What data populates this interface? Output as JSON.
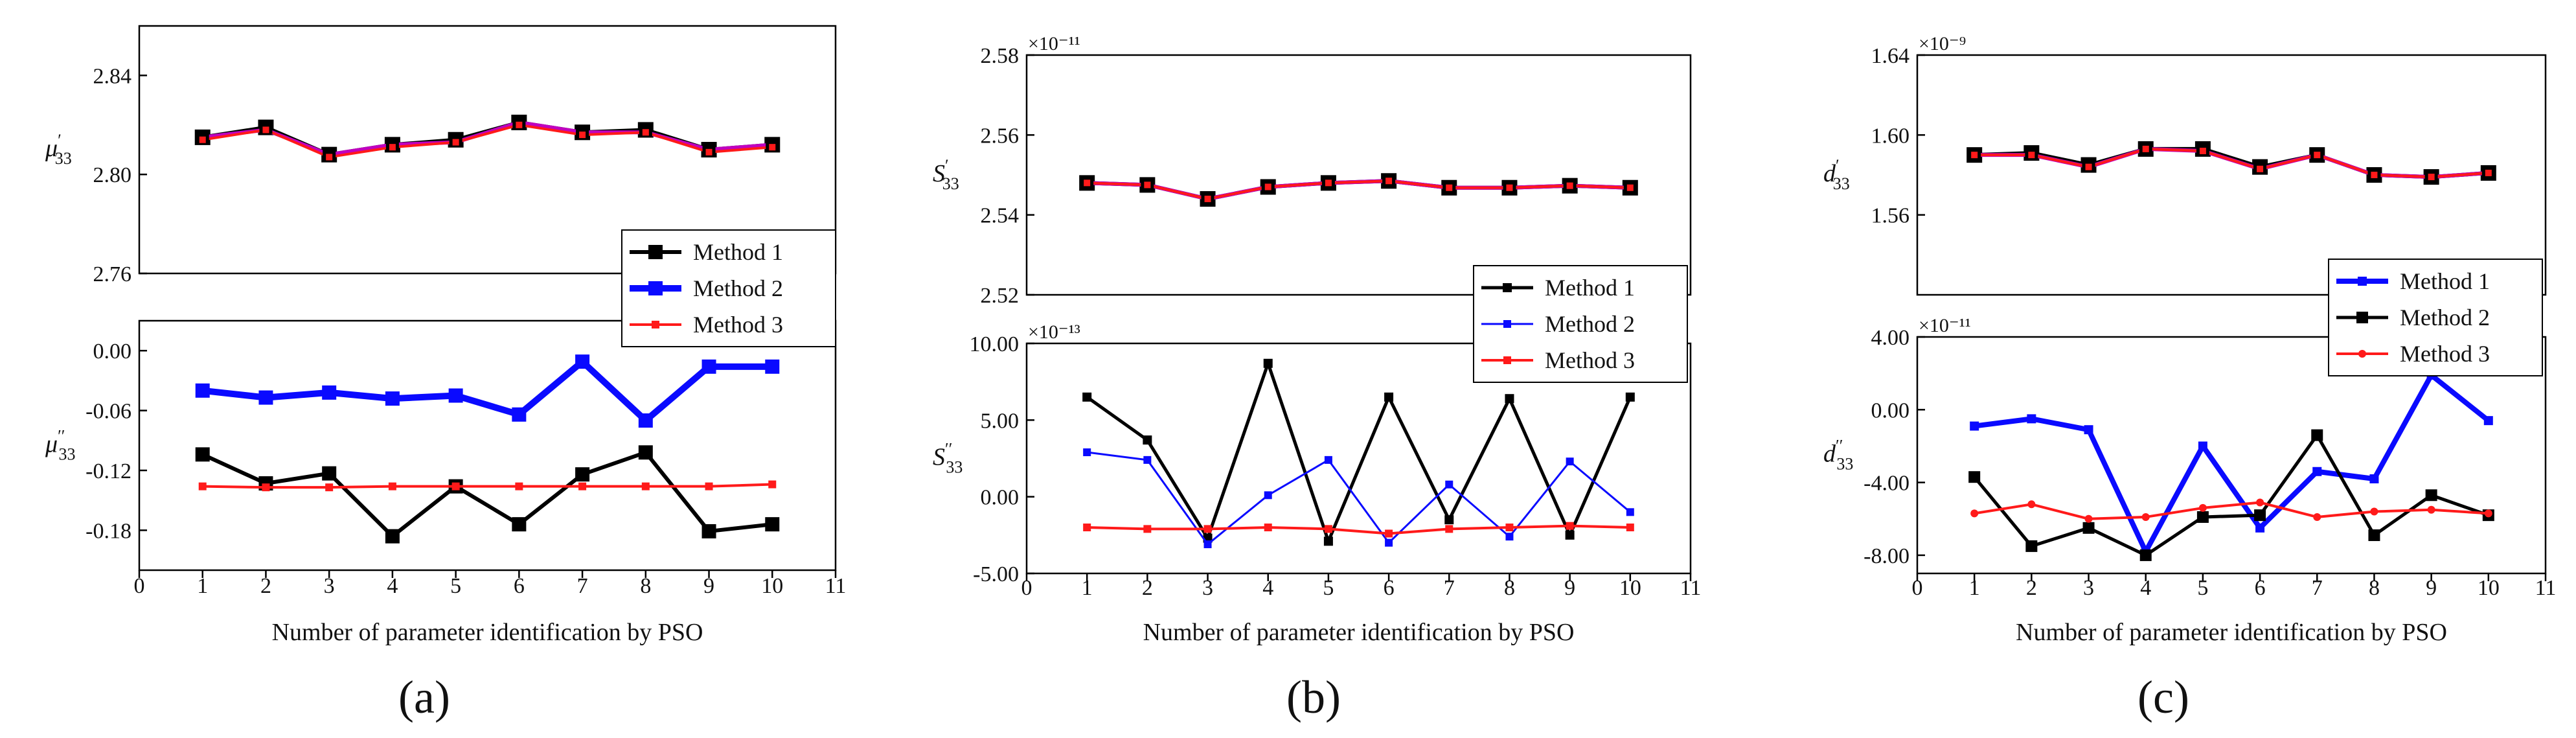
{
  "figure": {
    "x_axis_title": "Number of parameter identification by PSO",
    "x_ticks": [
      "0",
      "1",
      "2",
      "3",
      "4",
      "5",
      "6",
      "7",
      "8",
      "9",
      "10",
      "11"
    ],
    "colors": {
      "black": "#000000",
      "blue": "#0a0aff",
      "red": "#ff1a1a",
      "magenta": "#c000c0"
    }
  },
  "chart_data": [
    {
      "type": "line",
      "panel_label": "(a)",
      "xlabel": "Number of parameter identification by PSO",
      "xlim": [
        0,
        11
      ],
      "legend": [
        "Method 1",
        "Method 2",
        "Method 3"
      ],
      "legend_position": "top-right of lower subplot",
      "subplots": [
        {
          "ylabel": "μ'33",
          "ylim": [
            2.76,
            2.86
          ],
          "yticks": [
            "2.76",
            "2.80",
            "2.84"
          ],
          "exponent": "",
          "x": [
            1,
            2,
            3,
            4,
            5,
            6,
            7,
            8,
            9,
            10
          ],
          "series": [
            {
              "name": "Method 1",
              "values": [
                2.815,
                2.819,
                2.808,
                2.812,
                2.814,
                2.821,
                2.817,
                2.818,
                2.81,
                2.812
              ]
            },
            {
              "name": "Method 2",
              "values": [
                2.815,
                2.818,
                2.808,
                2.812,
                2.813,
                2.821,
                2.817,
                2.817,
                2.81,
                2.812
              ]
            },
            {
              "name": "Method 3",
              "values": [
                2.814,
                2.818,
                2.807,
                2.811,
                2.813,
                2.82,
                2.816,
                2.817,
                2.809,
                2.811
              ]
            }
          ]
        },
        {
          "ylabel": "μ''33",
          "ylim": [
            -0.22,
            0.03
          ],
          "yticks": [
            "-0.18",
            "-0.12",
            "-0.06",
            "0.00"
          ],
          "exponent": "",
          "x": [
            1,
            2,
            3,
            4,
            5,
            6,
            7,
            8,
            9,
            10
          ],
          "series": [
            {
              "name": "Method 1",
              "values": [
                -0.104,
                -0.133,
                -0.123,
                -0.186,
                -0.136,
                -0.174,
                -0.124,
                -0.102,
                -0.181,
                -0.174
              ]
            },
            {
              "name": "Method 2",
              "values": [
                -0.04,
                -0.047,
                -0.042,
                -0.048,
                -0.045,
                -0.064,
                -0.011,
                -0.07,
                -0.016,
                -0.016
              ]
            },
            {
              "name": "Method 3",
              "values": [
                -0.136,
                -0.137,
                -0.137,
                -0.136,
                -0.136,
                -0.136,
                -0.136,
                -0.136,
                -0.136,
                -0.134
              ]
            }
          ]
        }
      ]
    },
    {
      "type": "line",
      "panel_label": "(b)",
      "xlabel": "Number of parameter identification by PSO",
      "xlim": [
        0,
        11
      ],
      "legend": [
        "Method 1",
        "Method 2",
        "Method 3"
      ],
      "legend_position": "top-right of lower subplot",
      "subplots": [
        {
          "ylabel": "S'33",
          "ylim": [
            2.52,
            2.58
          ],
          "yticks": [
            "2.52",
            "2.54",
            "2.56",
            "2.58"
          ],
          "exponent": "×10⁻¹¹",
          "x": [
            1,
            2,
            3,
            4,
            5,
            6,
            7,
            8,
            9,
            10
          ],
          "series": [
            {
              "name": "Method 1",
              "values": [
                2.548,
                2.5475,
                2.544,
                2.547,
                2.548,
                2.5485,
                2.5468,
                2.5468,
                2.5473,
                2.5468
              ]
            },
            {
              "name": "Method 2",
              "values": [
                2.548,
                2.5475,
                2.544,
                2.547,
                2.548,
                2.5485,
                2.5468,
                2.5468,
                2.5473,
                2.5468
              ]
            },
            {
              "name": "Method 3",
              "values": [
                2.548,
                2.5475,
                2.544,
                2.547,
                2.548,
                2.5485,
                2.5468,
                2.5468,
                2.5473,
                2.5468
              ]
            }
          ]
        },
        {
          "ylabel": "S''33",
          "ylim": [
            -5.0,
            10.0
          ],
          "yticks": [
            "-5.00",
            "0.00",
            "5.00",
            "10.00"
          ],
          "exponent": "×10⁻¹³",
          "x": [
            1,
            2,
            3,
            4,
            5,
            6,
            7,
            8,
            9,
            10
          ],
          "series": [
            {
              "name": "Method 1",
              "values": [
                6.5,
                3.7,
                -2.7,
                8.7,
                -2.9,
                6.5,
                -1.5,
                6.4,
                -2.5,
                6.5
              ]
            },
            {
              "name": "Method 2",
              "values": [
                2.9,
                2.4,
                -3.1,
                0.1,
                2.4,
                -3.0,
                0.8,
                -2.6,
                2.3,
                -1.0
              ]
            },
            {
              "name": "Method 3",
              "values": [
                -2.0,
                -2.1,
                -2.1,
                -2.0,
                -2.1,
                -2.4,
                -2.1,
                -2.0,
                -1.9,
                -2.0
              ]
            }
          ]
        }
      ]
    },
    {
      "type": "line",
      "panel_label": "(c)",
      "xlabel": "Number of parameter identification by PSO",
      "xlim": [
        0,
        11
      ],
      "legend": [
        "Method 1",
        "Method 2",
        "Method 3"
      ],
      "legend_position": "top-right of lower subplot",
      "subplots": [
        {
          "ylabel": "d'33",
          "ylim": [
            1.52,
            1.64
          ],
          "yticks": [
            "1.56",
            "1.60",
            "1.64"
          ],
          "exponent": "×10⁻⁹",
          "x": [
            1,
            2,
            3,
            4,
            5,
            6,
            7,
            8,
            9,
            10
          ],
          "series": [
            {
              "name": "Method 1",
              "values": [
                1.59,
                1.591,
                1.585,
                1.593,
                1.593,
                1.584,
                1.59,
                1.58,
                1.579,
                1.581
              ]
            },
            {
              "name": "Method 2",
              "values": [
                1.59,
                1.59,
                1.584,
                1.593,
                1.592,
                1.583,
                1.59,
                1.58,
                1.579,
                1.581
              ]
            },
            {
              "name": "Method 3",
              "values": [
                1.59,
                1.59,
                1.584,
                1.593,
                1.592,
                1.583,
                1.59,
                1.58,
                1.579,
                1.581
              ]
            }
          ]
        },
        {
          "ylabel": "d''33",
          "ylim": [
            -9.0,
            4.0
          ],
          "yticks": [
            "-8.00",
            "-4.00",
            "0.00",
            "4.00"
          ],
          "exponent": "×10⁻¹¹",
          "x": [
            1,
            2,
            3,
            4,
            5,
            6,
            7,
            8,
            9,
            10
          ],
          "series": [
            {
              "name": "Method 1",
              "values": [
                -0.9,
                -0.5,
                -1.1,
                -7.8,
                -2.0,
                -6.5,
                -3.4,
                -3.8,
                1.9,
                -0.6
              ]
            },
            {
              "name": "Method 2",
              "values": [
                -3.7,
                -7.5,
                -6.5,
                -8.0,
                -5.9,
                -5.8,
                -1.4,
                -6.9,
                -4.7,
                -5.8
              ]
            },
            {
              "name": "Method 3",
              "values": [
                -5.7,
                -5.2,
                -6.0,
                -5.9,
                -5.4,
                -5.1,
                -5.9,
                -5.6,
                -5.5,
                -5.7
              ]
            }
          ]
        }
      ]
    }
  ]
}
